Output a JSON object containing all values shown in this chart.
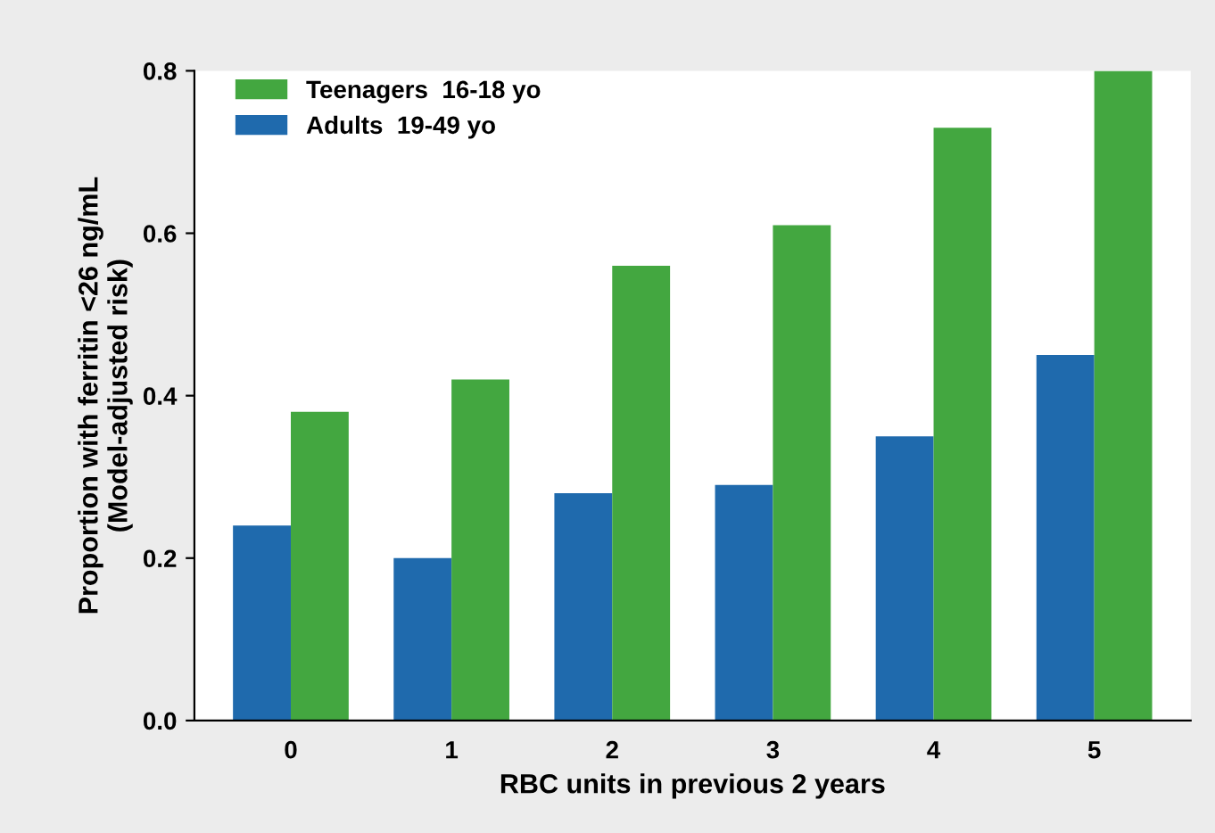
{
  "chart_data": {
    "type": "bar",
    "xlabel": "RBC units in previous 2 years",
    "ylabel": "Proportion with ferritin <26 ng/mL\n(Model-adjusted risk)",
    "categories": [
      "0",
      "1",
      "2",
      "3",
      "4",
      "5"
    ],
    "series": [
      {
        "name": "Adults  19-49 yo",
        "color": "#1f6aad",
        "values": [
          0.24,
          0.2,
          0.28,
          0.29,
          0.35,
          0.45
        ]
      },
      {
        "name": "Teenagers  16-18 yo",
        "color": "#43a740",
        "values": [
          0.38,
          0.42,
          0.56,
          0.61,
          0.73,
          0.8
        ]
      }
    ],
    "ylim": [
      0,
      0.8
    ],
    "yticks": [
      {
        "value": 0,
        "label": "0.0"
      },
      {
        "value": 0.2,
        "label": "0.2"
      },
      {
        "value": 0.4,
        "label": "0.4"
      },
      {
        "value": 0.6,
        "label": "0.6"
      },
      {
        "value": 0.8,
        "label": "0.8"
      }
    ],
    "grid": false,
    "legend": "top left"
  }
}
